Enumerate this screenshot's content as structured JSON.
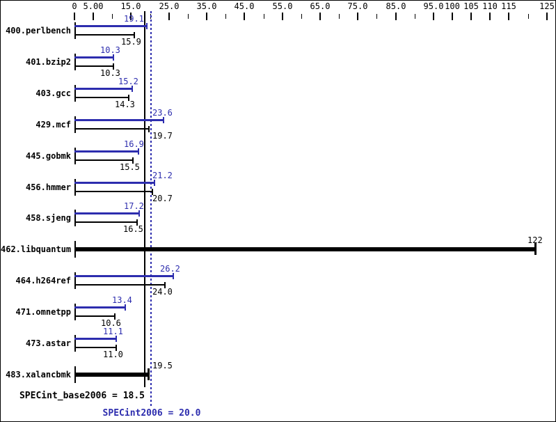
{
  "chart_data": {
    "type": "bar",
    "orientation": "horizontal",
    "description": "SPEC CPU2006 integer rate result graph; each benchmark shows a blue peak bar (value above) and a black base bar (value below); single thick black bars where only one value is shown",
    "x_axis": {
      "range": [
        0,
        126
      ],
      "major_ticks": [
        {
          "value": 0,
          "label": "0"
        },
        {
          "value": 5,
          "label": "5.00"
        },
        {
          "value": 15,
          "label": "15.0"
        },
        {
          "value": 25,
          "label": "25.0"
        },
        {
          "value": 35,
          "label": "35.0"
        },
        {
          "value": 45,
          "label": "45.0"
        },
        {
          "value": 55,
          "label": "55.0"
        },
        {
          "value": 65,
          "label": "65.0"
        },
        {
          "value": 75,
          "label": "75.0"
        },
        {
          "value": 85,
          "label": "85.0"
        },
        {
          "value": 95,
          "label": "95.0"
        },
        {
          "value": 100,
          "label": "100"
        },
        {
          "value": 105,
          "label": "105"
        },
        {
          "value": 110,
          "label": "110"
        },
        {
          "value": 115,
          "label": "115"
        },
        {
          "value": 125,
          "label": "125"
        }
      ],
      "minor_ticks": [
        10,
        20,
        30,
        40,
        50,
        60,
        70,
        80,
        90,
        120
      ]
    },
    "benchmarks": [
      {
        "name": "400.perlbench",
        "peak": "19.1",
        "base": "15.9"
      },
      {
        "name": "401.bzip2",
        "peak": "10.3",
        "base": "10.3"
      },
      {
        "name": "403.gcc",
        "peak": "15.2",
        "base": "14.3"
      },
      {
        "name": "429.mcf",
        "peak": "23.6",
        "base": "19.7"
      },
      {
        "name": "445.gobmk",
        "peak": "16.9",
        "base": "15.5"
      },
      {
        "name": "456.hmmer",
        "peak": "21.2",
        "base": "20.7"
      },
      {
        "name": "458.sjeng",
        "peak": "17.2",
        "base": "16.5"
      },
      {
        "name": "462.libquantum",
        "peak": null,
        "base": "122"
      },
      {
        "name": "464.h264ref",
        "peak": "26.2",
        "base": "24.0"
      },
      {
        "name": "471.omnetpp",
        "peak": "13.4",
        "base": "10.6"
      },
      {
        "name": "473.astar",
        "peak": "11.1",
        "base": "11.0"
      },
      {
        "name": "483.xalancbmk",
        "peak": null,
        "base": "19.5"
      }
    ],
    "reference_lines": {
      "base": {
        "value": 18.5,
        "style": "solid",
        "color": "#000000"
      },
      "peak": {
        "value": 20.0,
        "style": "dotted",
        "color": "#2d2dae"
      }
    },
    "summary": {
      "base": {
        "label": "SPECint_base2006 = 18.5",
        "value": 18.5
      },
      "peak": {
        "label": "SPECint2006 = 20.0",
        "value": 20.0
      }
    },
    "colors": {
      "peak_bar": "#2d2dae",
      "base_bar": "#000000",
      "background": "#ffffff",
      "border": "#000000"
    }
  }
}
